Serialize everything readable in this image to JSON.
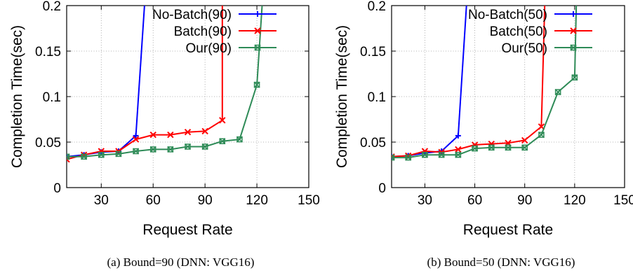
{
  "chart_data": [
    {
      "type": "line",
      "caption": "(a)  Bound=90 (DNN: VGG16)",
      "xlabel": "Request Rate",
      "ylabel": "Completion Time(sec)",
      "xlim": [
        10,
        150
      ],
      "ylim": [
        0,
        0.2
      ],
      "xticks": [
        "30",
        "60",
        "90",
        "120",
        "150"
      ],
      "yticks": [
        "0",
        "0.05",
        "0.1",
        "0.15",
        "0.2"
      ],
      "grid": true,
      "legend_position": "top-right",
      "series": [
        {
          "name": "No-Batch(90)",
          "color": "#0000ff",
          "marker": "plus",
          "points": [
            [
              10,
              0.034
            ],
            [
              20,
              0.036
            ],
            [
              30,
              0.039
            ],
            [
              40,
              0.04
            ],
            [
              50,
              0.057
            ],
            [
              55,
              0.2
            ]
          ]
        },
        {
          "name": "Batch(90)",
          "color": "#ff0000",
          "marker": "x",
          "points": [
            [
              10,
              0.031
            ],
            [
              20,
              0.036
            ],
            [
              30,
              0.04
            ],
            [
              40,
              0.04
            ],
            [
              50,
              0.053
            ],
            [
              60,
              0.058
            ],
            [
              70,
              0.058
            ],
            [
              80,
              0.061
            ],
            [
              90,
              0.062
            ],
            [
              100,
              0.074
            ],
            [
              100,
              0.2
            ]
          ]
        },
        {
          "name": "Our(90)",
          "color": "#2e8b57",
          "marker": "box",
          "points": [
            [
              10,
              0.034
            ],
            [
              20,
              0.034
            ],
            [
              30,
              0.036
            ],
            [
              40,
              0.037
            ],
            [
              50,
              0.04
            ],
            [
              60,
              0.042
            ],
            [
              70,
              0.042
            ],
            [
              80,
              0.045
            ],
            [
              90,
              0.045
            ],
            [
              100,
              0.051
            ],
            [
              110,
              0.053
            ],
            [
              120,
              0.113
            ],
            [
              123,
              0.2
            ]
          ]
        }
      ]
    },
    {
      "type": "line",
      "caption": "(b)  Bound=50 (DNN: VGG16)",
      "xlabel": "Request Rate",
      "ylabel": "Completion Time(sec)",
      "xlim": [
        10,
        150
      ],
      "ylim": [
        0,
        0.2
      ],
      "xticks": [
        "30",
        "60",
        "90",
        "120",
        "150"
      ],
      "yticks": [
        "0",
        "0.05",
        "0.1",
        "0.15",
        "0.2"
      ],
      "grid": true,
      "legend_position": "top-right",
      "series": [
        {
          "name": "No-Batch(50)",
          "color": "#0000ff",
          "marker": "plus",
          "points": [
            [
              10,
              0.034
            ],
            [
              20,
              0.035
            ],
            [
              30,
              0.038
            ],
            [
              40,
              0.04
            ],
            [
              50,
              0.057
            ],
            [
              55,
              0.2
            ]
          ]
        },
        {
          "name": "Batch(50)",
          "color": "#ff0000",
          "marker": "x",
          "points": [
            [
              10,
              0.034
            ],
            [
              20,
              0.035
            ],
            [
              30,
              0.04
            ],
            [
              40,
              0.039
            ],
            [
              50,
              0.042
            ],
            [
              60,
              0.047
            ],
            [
              70,
              0.048
            ],
            [
              80,
              0.049
            ],
            [
              90,
              0.052
            ],
            [
              100,
              0.067
            ],
            [
              102,
              0.2
            ]
          ]
        },
        {
          "name": "Our(50)",
          "color": "#2e8b57",
          "marker": "box",
          "points": [
            [
              10,
              0.033
            ],
            [
              20,
              0.033
            ],
            [
              30,
              0.036
            ],
            [
              40,
              0.036
            ],
            [
              50,
              0.036
            ],
            [
              60,
              0.043
            ],
            [
              70,
              0.044
            ],
            [
              80,
              0.044
            ],
            [
              90,
              0.044
            ],
            [
              100,
              0.058
            ],
            [
              110,
              0.105
            ],
            [
              120,
              0.121
            ],
            [
              121,
              0.2
            ]
          ]
        }
      ]
    }
  ]
}
